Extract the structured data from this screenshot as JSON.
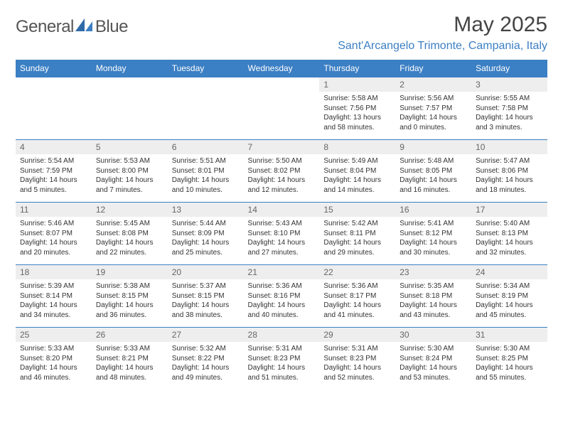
{
  "brand": {
    "part1": "General",
    "part2": "Blue"
  },
  "title": "May 2025",
  "location": "Sant'Arcangelo Trimonte, Campania, Italy",
  "colors": {
    "header_bg": "#3b7fc4",
    "header_text": "#ffffff",
    "daynum_bg": "#eeeeee",
    "daynum_text": "#666666",
    "body_text": "#333333",
    "row_border": "#3b7fc4",
    "page_bg": "#ffffff",
    "brand_gray": "#555555",
    "brand_blue": "#3b7fc4"
  },
  "typography": {
    "title_fontsize": 30,
    "location_fontsize": 16,
    "th_fontsize": 12,
    "daynum_fontsize": 12,
    "cell_fontsize": 10
  },
  "day_headers": [
    "Sunday",
    "Monday",
    "Tuesday",
    "Wednesday",
    "Thursday",
    "Friday",
    "Saturday"
  ],
  "weeks": [
    [
      null,
      null,
      null,
      null,
      {
        "n": "1",
        "sr": "Sunrise: 5:58 AM",
        "ss": "Sunset: 7:56 PM",
        "dl": "Daylight: 13 hours and 58 minutes."
      },
      {
        "n": "2",
        "sr": "Sunrise: 5:56 AM",
        "ss": "Sunset: 7:57 PM",
        "dl": "Daylight: 14 hours and 0 minutes."
      },
      {
        "n": "3",
        "sr": "Sunrise: 5:55 AM",
        "ss": "Sunset: 7:58 PM",
        "dl": "Daylight: 14 hours and 3 minutes."
      }
    ],
    [
      {
        "n": "4",
        "sr": "Sunrise: 5:54 AM",
        "ss": "Sunset: 7:59 PM",
        "dl": "Daylight: 14 hours and 5 minutes."
      },
      {
        "n": "5",
        "sr": "Sunrise: 5:53 AM",
        "ss": "Sunset: 8:00 PM",
        "dl": "Daylight: 14 hours and 7 minutes."
      },
      {
        "n": "6",
        "sr": "Sunrise: 5:51 AM",
        "ss": "Sunset: 8:01 PM",
        "dl": "Daylight: 14 hours and 10 minutes."
      },
      {
        "n": "7",
        "sr": "Sunrise: 5:50 AM",
        "ss": "Sunset: 8:02 PM",
        "dl": "Daylight: 14 hours and 12 minutes."
      },
      {
        "n": "8",
        "sr": "Sunrise: 5:49 AM",
        "ss": "Sunset: 8:04 PM",
        "dl": "Daylight: 14 hours and 14 minutes."
      },
      {
        "n": "9",
        "sr": "Sunrise: 5:48 AM",
        "ss": "Sunset: 8:05 PM",
        "dl": "Daylight: 14 hours and 16 minutes."
      },
      {
        "n": "10",
        "sr": "Sunrise: 5:47 AM",
        "ss": "Sunset: 8:06 PM",
        "dl": "Daylight: 14 hours and 18 minutes."
      }
    ],
    [
      {
        "n": "11",
        "sr": "Sunrise: 5:46 AM",
        "ss": "Sunset: 8:07 PM",
        "dl": "Daylight: 14 hours and 20 minutes."
      },
      {
        "n": "12",
        "sr": "Sunrise: 5:45 AM",
        "ss": "Sunset: 8:08 PM",
        "dl": "Daylight: 14 hours and 22 minutes."
      },
      {
        "n": "13",
        "sr": "Sunrise: 5:44 AM",
        "ss": "Sunset: 8:09 PM",
        "dl": "Daylight: 14 hours and 25 minutes."
      },
      {
        "n": "14",
        "sr": "Sunrise: 5:43 AM",
        "ss": "Sunset: 8:10 PM",
        "dl": "Daylight: 14 hours and 27 minutes."
      },
      {
        "n": "15",
        "sr": "Sunrise: 5:42 AM",
        "ss": "Sunset: 8:11 PM",
        "dl": "Daylight: 14 hours and 29 minutes."
      },
      {
        "n": "16",
        "sr": "Sunrise: 5:41 AM",
        "ss": "Sunset: 8:12 PM",
        "dl": "Daylight: 14 hours and 30 minutes."
      },
      {
        "n": "17",
        "sr": "Sunrise: 5:40 AM",
        "ss": "Sunset: 8:13 PM",
        "dl": "Daylight: 14 hours and 32 minutes."
      }
    ],
    [
      {
        "n": "18",
        "sr": "Sunrise: 5:39 AM",
        "ss": "Sunset: 8:14 PM",
        "dl": "Daylight: 14 hours and 34 minutes."
      },
      {
        "n": "19",
        "sr": "Sunrise: 5:38 AM",
        "ss": "Sunset: 8:15 PM",
        "dl": "Daylight: 14 hours and 36 minutes."
      },
      {
        "n": "20",
        "sr": "Sunrise: 5:37 AM",
        "ss": "Sunset: 8:15 PM",
        "dl": "Daylight: 14 hours and 38 minutes."
      },
      {
        "n": "21",
        "sr": "Sunrise: 5:36 AM",
        "ss": "Sunset: 8:16 PM",
        "dl": "Daylight: 14 hours and 40 minutes."
      },
      {
        "n": "22",
        "sr": "Sunrise: 5:36 AM",
        "ss": "Sunset: 8:17 PM",
        "dl": "Daylight: 14 hours and 41 minutes."
      },
      {
        "n": "23",
        "sr": "Sunrise: 5:35 AM",
        "ss": "Sunset: 8:18 PM",
        "dl": "Daylight: 14 hours and 43 minutes."
      },
      {
        "n": "24",
        "sr": "Sunrise: 5:34 AM",
        "ss": "Sunset: 8:19 PM",
        "dl": "Daylight: 14 hours and 45 minutes."
      }
    ],
    [
      {
        "n": "25",
        "sr": "Sunrise: 5:33 AM",
        "ss": "Sunset: 8:20 PM",
        "dl": "Daylight: 14 hours and 46 minutes."
      },
      {
        "n": "26",
        "sr": "Sunrise: 5:33 AM",
        "ss": "Sunset: 8:21 PM",
        "dl": "Daylight: 14 hours and 48 minutes."
      },
      {
        "n": "27",
        "sr": "Sunrise: 5:32 AM",
        "ss": "Sunset: 8:22 PM",
        "dl": "Daylight: 14 hours and 49 minutes."
      },
      {
        "n": "28",
        "sr": "Sunrise: 5:31 AM",
        "ss": "Sunset: 8:23 PM",
        "dl": "Daylight: 14 hours and 51 minutes."
      },
      {
        "n": "29",
        "sr": "Sunrise: 5:31 AM",
        "ss": "Sunset: 8:23 PM",
        "dl": "Daylight: 14 hours and 52 minutes."
      },
      {
        "n": "30",
        "sr": "Sunrise: 5:30 AM",
        "ss": "Sunset: 8:24 PM",
        "dl": "Daylight: 14 hours and 53 minutes."
      },
      {
        "n": "31",
        "sr": "Sunrise: 5:30 AM",
        "ss": "Sunset: 8:25 PM",
        "dl": "Daylight: 14 hours and 55 minutes."
      }
    ]
  ]
}
